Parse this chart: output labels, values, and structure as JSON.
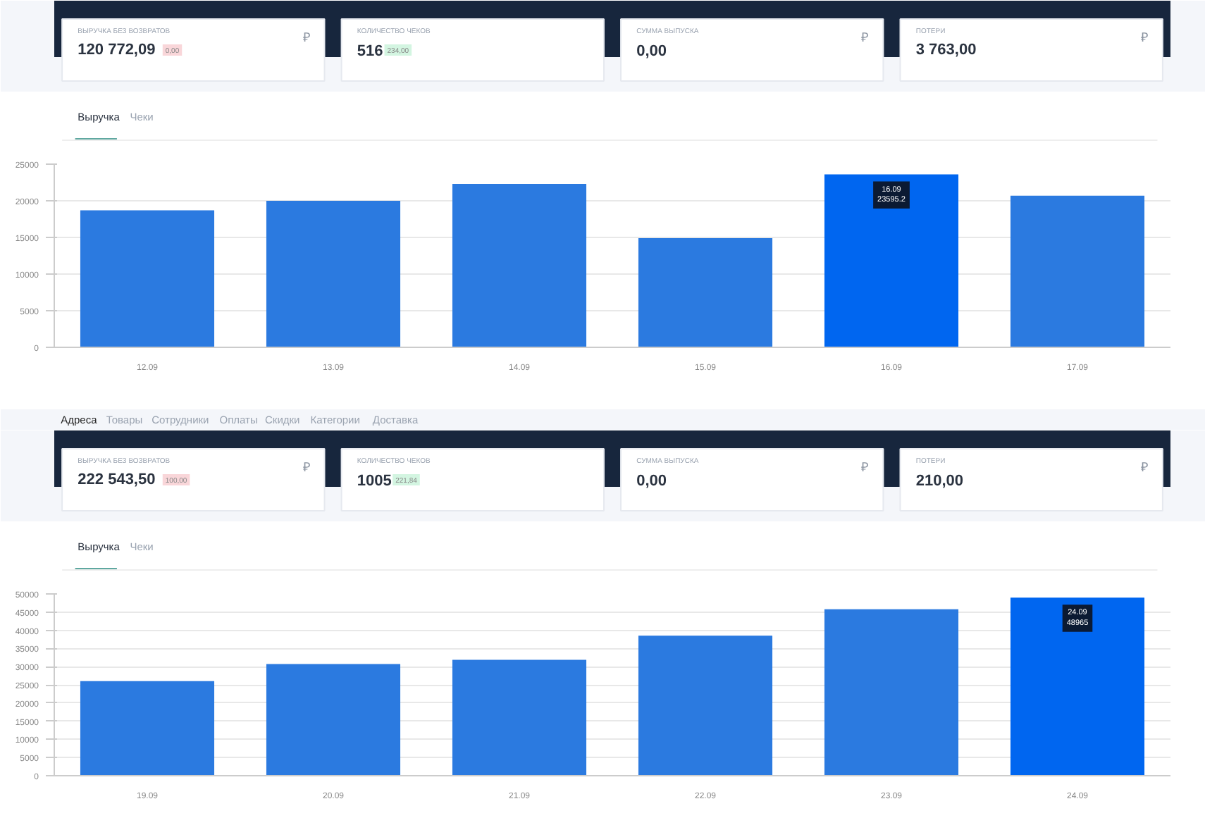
{
  "chart_data": [
    {
      "type": "other",
      "categories": [
        "ВЫРУЧКА БЕЗ ВОЗВРАТОВ",
        "КОЛИЧЕСТВО ЧЕКОВ",
        "СУММА ВЫПУСКА",
        "ПОТЕРИ"
      ],
      "value_labels": [
        "120 772,09",
        "516",
        "0,00",
        "3 763,00"
      ],
      "totals": [
        "0,00",
        "234,00",
        null,
        null
      ],
      "annotations": [
        {
          "text": "₽",
          "x": "ВЫРУЧКА БЕЗ ВОЗВРАТОВ"
        },
        {
          "text": "₽",
          "x": "СУММА ВЫПУСКА"
        },
        {
          "text": "₽",
          "x": "ПОТЕРИ"
        }
      ]
    },
    {
      "type": "bar",
      "categories": [
        "12.09",
        "13.09",
        "14.09",
        "15.09",
        "16.09",
        "17.09"
      ],
      "values": [
        18700,
        20000,
        22300,
        14900,
        23595.2,
        20700
      ],
      "colors": [
        "#2b7ae0",
        "#2b7ae0",
        "#2b7ae0",
        "#2b7ae0",
        "#0066f0",
        "#2b7ae0"
      ],
      "ylim": [
        0,
        25000
      ],
      "yticks": [
        0,
        5000,
        10000,
        15000,
        20000,
        25000
      ],
      "grid": "y",
      "annotations": [
        "Выручка",
        "Чеки",
        {
          "text": "16.09\n23595.2",
          "x": "16.09",
          "y": 23595.2
        }
      ]
    },
    {
      "type": "other",
      "categories": [
        "Адреса",
        "Товары",
        "Сотрудники",
        "Оплаты",
        "Скидки",
        "Категории",
        "Доставка"
      ]
    },
    {
      "type": "other",
      "categories": [
        "ВЫРУЧКА БЕЗ ВОЗВРАТОВ",
        "КОЛИЧЕСТВО ЧЕКОВ",
        "СУММА ВЫПУСКА",
        "ПОТЕРИ"
      ],
      "value_labels": [
        "222 543,50",
        "1005",
        "0,00",
        "210,00"
      ],
      "totals": [
        "100,00",
        "221,84",
        null,
        null
      ],
      "annotations": [
        {
          "text": "₽",
          "x": "ВЫРУЧКА БЕЗ ВОЗВРАТОВ"
        },
        {
          "text": "₽",
          "x": "СУММА ВЫПУСКА"
        },
        {
          "text": "₽",
          "x": "ПОТЕРИ"
        }
      ]
    },
    {
      "type": "bar",
      "categories": [
        "19.09",
        "20.09",
        "21.09",
        "22.09",
        "23.09",
        "24.09"
      ],
      "values": [
        26000,
        30700,
        31900,
        38500,
        45800,
        48965
      ],
      "colors": [
        "#2b7ae0",
        "#2b7ae0",
        "#2b7ae0",
        "#2b7ae0",
        "#2b7ae0",
        "#0066f0"
      ],
      "ylim": [
        0,
        50000
      ],
      "yticks": [
        0,
        5000,
        10000,
        15000,
        20000,
        25000,
        30000,
        35000,
        40000,
        45000,
        50000
      ],
      "grid": "y",
      "annotations": [
        "Выручка",
        "Чеки",
        {
          "text": "24.09\n48965",
          "x": "24.09",
          "y": 48965
        }
      ]
    }
  ]
}
